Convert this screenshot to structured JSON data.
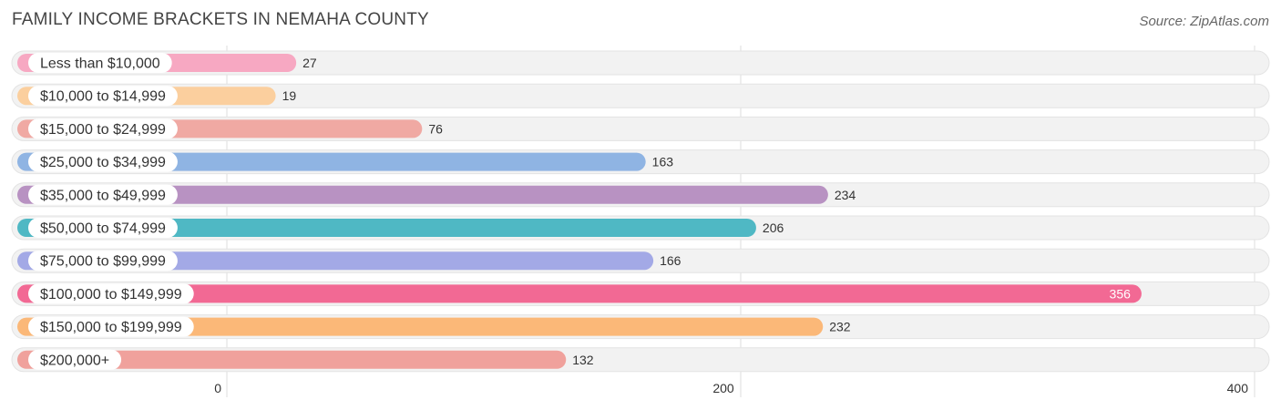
{
  "header": {
    "title": "FAMILY INCOME BRACKETS IN NEMAHA COUNTY",
    "source": "Source: ZipAtlas.com"
  },
  "chart_data": {
    "type": "bar",
    "orientation": "horizontal",
    "title": "FAMILY INCOME BRACKETS IN NEMAHA COUNTY",
    "categories": [
      "Less than $10,000",
      "$10,000 to $14,999",
      "$15,000 to $24,999",
      "$25,000 to $34,999",
      "$35,000 to $49,999",
      "$50,000 to $74,999",
      "$75,000 to $99,999",
      "$100,000 to $149,999",
      "$150,000 to $199,999",
      "$200,000+"
    ],
    "values": [
      27,
      19,
      76,
      163,
      234,
      206,
      166,
      356,
      232,
      132
    ],
    "colors": [
      "#f7a8c2",
      "#fbcf9e",
      "#f0a9a3",
      "#8fb4e3",
      "#b892c2",
      "#4fb8c4",
      "#a3a9e6",
      "#f26994",
      "#fbb878",
      "#f0a19c"
    ],
    "xlim": [
      0,
      400
    ],
    "xticks": [
      0,
      200,
      400
    ],
    "xlabel": "",
    "ylabel": "",
    "grid": true
  }
}
